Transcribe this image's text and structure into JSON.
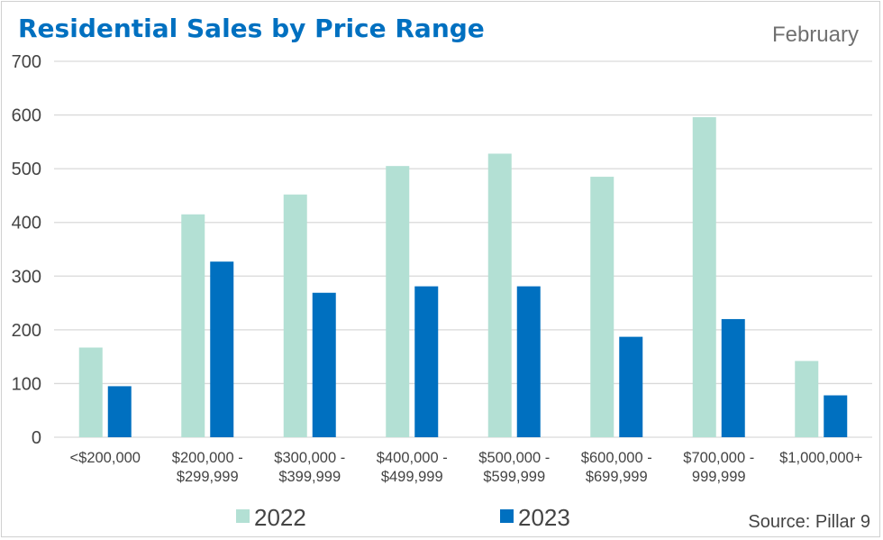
{
  "chart_data": {
    "type": "bar",
    "title": "Residential Sales by Price Range",
    "subtitle": "February",
    "source": "Source: Pillar 9",
    "xlabel": "",
    "ylabel": "",
    "ylim": [
      0,
      700
    ],
    "yticks": [
      0,
      100,
      200,
      300,
      400,
      500,
      600,
      700
    ],
    "grid": true,
    "legend_position": "bottom",
    "categories": [
      [
        "<$200,000"
      ],
      [
        "$200,000 -",
        "$299,999"
      ],
      [
        "$300,000 -",
        "$399,999"
      ],
      [
        "$400,000 -",
        "$499,999"
      ],
      [
        "$500,000 -",
        "$599,999"
      ],
      [
        "$600,000 -",
        "$699,999"
      ],
      [
        "$700,000 -",
        "999,999"
      ],
      [
        "$1,000,000+"
      ]
    ],
    "series": [
      {
        "name": "2022",
        "color": "#b3e0d4",
        "values": [
          167,
          415,
          452,
          505,
          528,
          485,
          596,
          142
        ]
      },
      {
        "name": "2023",
        "color": "#0070c0",
        "values": [
          95,
          327,
          269,
          281,
          281,
          187,
          220,
          78
        ]
      }
    ],
    "colors": {
      "title": "#0070c0",
      "grid": "#d9d9d9",
      "text": "#444444"
    }
  }
}
